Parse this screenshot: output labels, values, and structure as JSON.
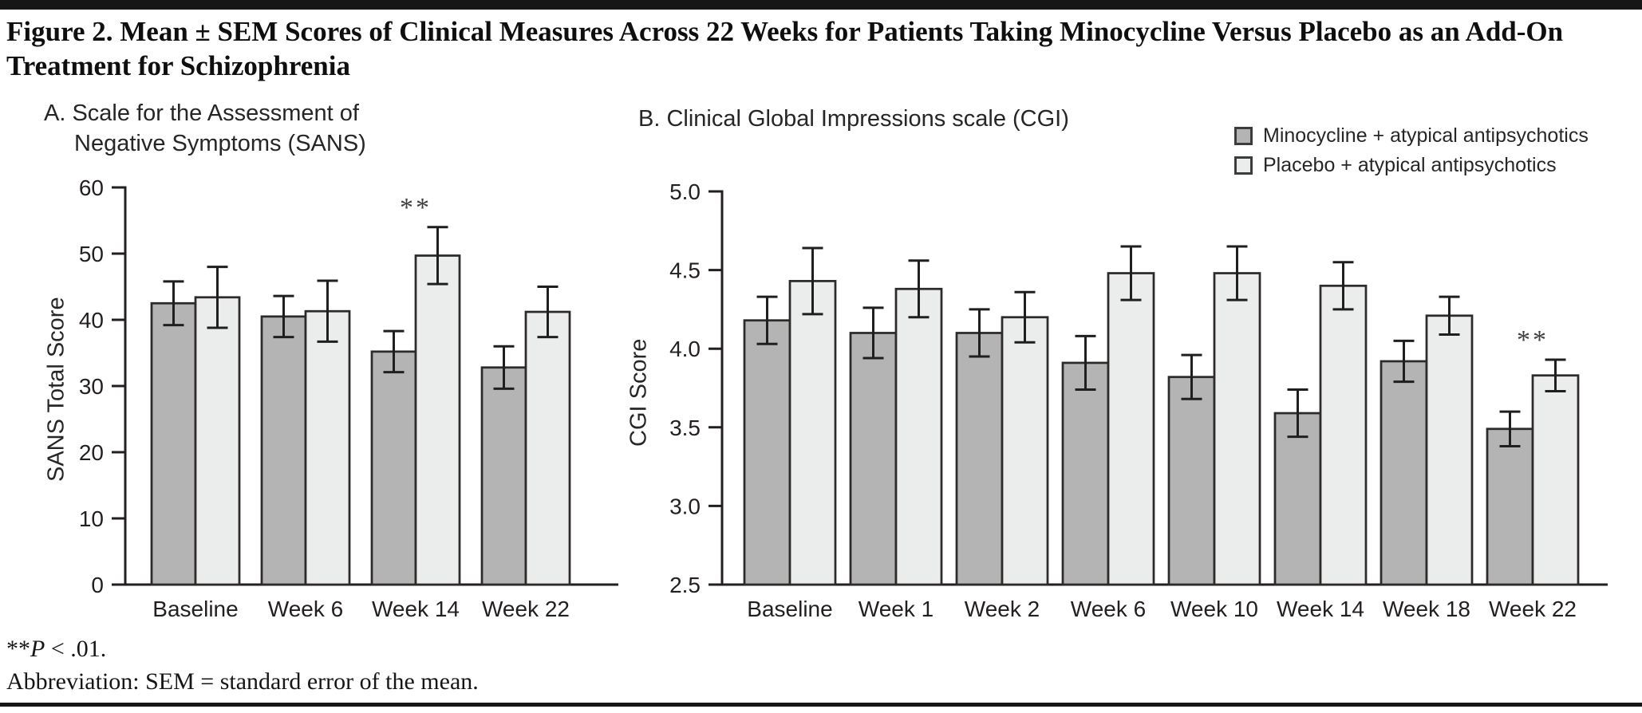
{
  "page": {
    "title_line1": "Figure 2. Mean ± SEM Scores of Clinical Measures Across 22 Weeks for Patients Taking Minocycline Versus Placebo as an Add-On",
    "title_line2": "Treatment for Schizophrenia",
    "footnote_stars": "**",
    "footnote_p": "P",
    "footnote_p_rest": " < .01.",
    "footnote_abbrev": "Abbreviation: SEM = standard error of the mean."
  },
  "legend": {
    "items": [
      {
        "label": "Minocycline + atypical antipsychotics",
        "color": "#b3b4b3"
      },
      {
        "label": "Placebo + atypical antipsychotics",
        "color": "#ebecec"
      }
    ]
  },
  "chart_data": [
    {
      "id": "sans",
      "type": "bar",
      "panel_title_line1": "A. Scale for the Assessment of",
      "panel_title_line2": "Negative Symptoms (SANS)",
      "ylabel": "SANS Total Score",
      "ylim": [
        0,
        60
      ],
      "yticks": [
        0,
        10,
        20,
        30,
        40,
        50,
        60
      ],
      "ytick_decimals": 0,
      "grid": false,
      "categories": [
        "Baseline",
        "Week 6",
        "Week 14",
        "Week 22"
      ],
      "series": [
        {
          "name": "Minocycline + atypical antipsychotics",
          "color": "#b3b4b3",
          "values": [
            42.5,
            40.5,
            35.2,
            32.8
          ],
          "sem": [
            3.3,
            3.1,
            3.1,
            3.2
          ]
        },
        {
          "name": "Placebo + atypical antipsychotics",
          "color": "#ebecec",
          "values": [
            43.4,
            41.3,
            49.7,
            41.2
          ],
          "sem": [
            4.6,
            4.6,
            4.3,
            3.8
          ]
        }
      ],
      "annotations": [
        {
          "text": "**",
          "category_index": 2,
          "series_index": 1,
          "meaning": "P < .01"
        }
      ]
    },
    {
      "id": "cgi",
      "type": "bar",
      "panel_title_line1": "B. Clinical Global Impressions scale (CGI)",
      "panel_title_line2": "",
      "ylabel": "CGI Score",
      "ylim": [
        2.5,
        5.0
      ],
      "yticks": [
        2.5,
        3.0,
        3.5,
        4.0,
        4.5,
        5.0
      ],
      "ytick_decimals": 1,
      "grid": false,
      "categories": [
        "Baseline",
        "Week 1",
        "Week 2",
        "Week 6",
        "Week 10",
        "Week 14",
        "Week 18",
        "Week 22"
      ],
      "series": [
        {
          "name": "Minocycline + atypical antipsychotics",
          "color": "#b3b4b3",
          "values": [
            4.18,
            4.1,
            4.1,
            3.91,
            3.82,
            3.59,
            3.92,
            3.49
          ],
          "sem": [
            0.15,
            0.16,
            0.15,
            0.17,
            0.14,
            0.15,
            0.13,
            0.11
          ]
        },
        {
          "name": "Placebo + atypical antipsychotics",
          "color": "#ebecec",
          "values": [
            4.43,
            4.38,
            4.2,
            4.48,
            4.48,
            4.4,
            4.21,
            3.83
          ],
          "sem": [
            0.21,
            0.18,
            0.16,
            0.17,
            0.17,
            0.15,
            0.12,
            0.1
          ]
        }
      ],
      "annotations": [
        {
          "text": "**",
          "category_index": 7,
          "series_index": 1,
          "meaning": "P < .01"
        }
      ]
    }
  ]
}
